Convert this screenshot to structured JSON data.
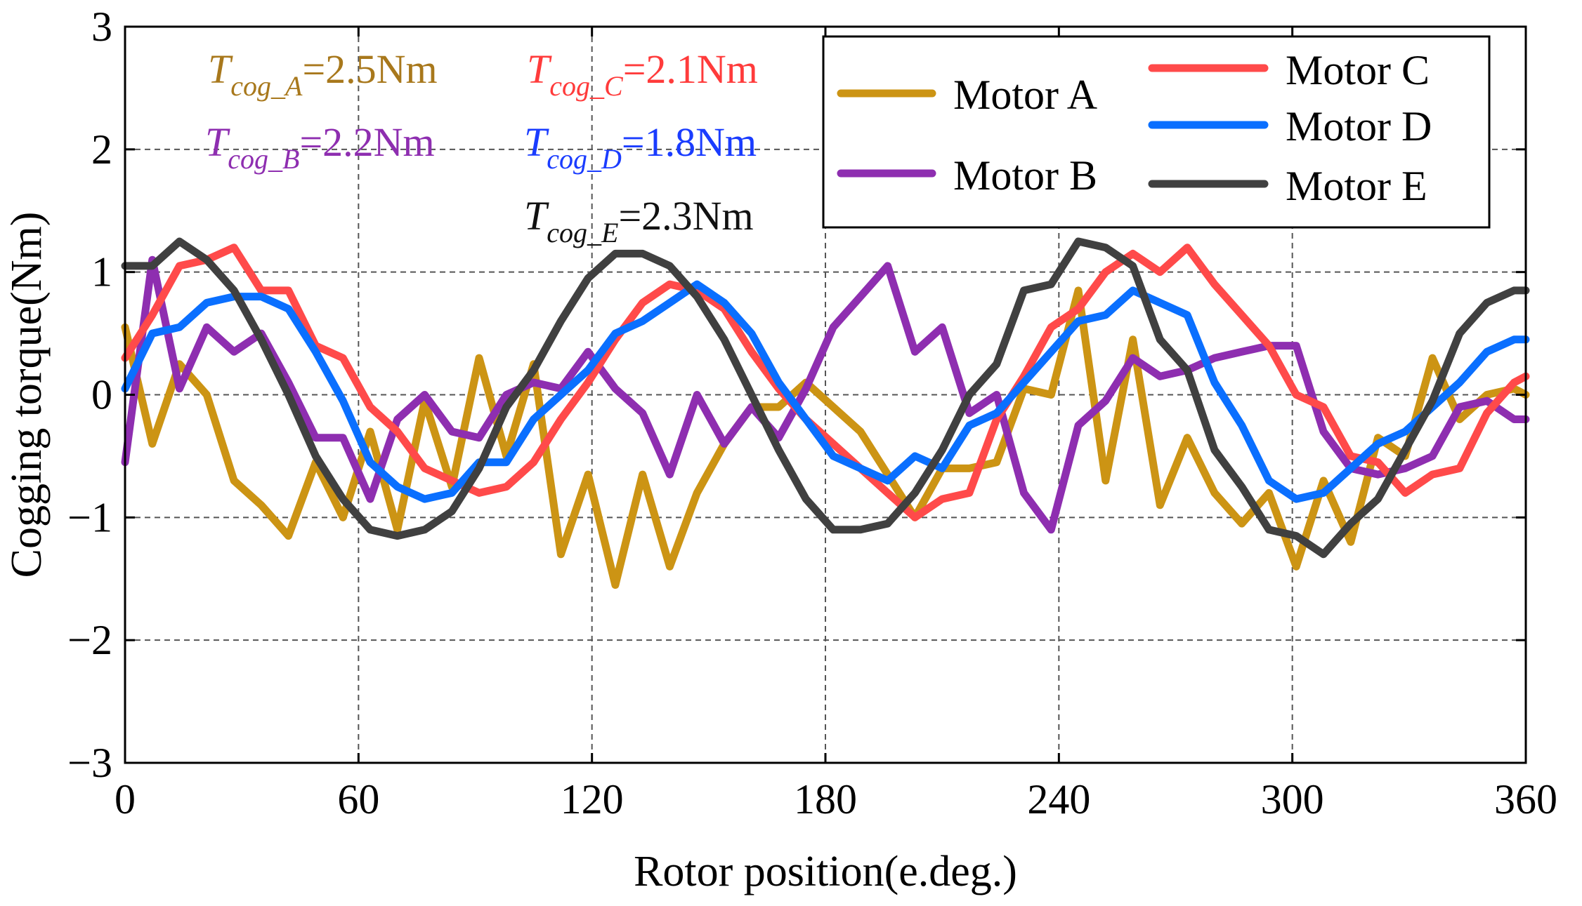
{
  "chart_data": {
    "type": "line",
    "xlabel": "Rotor position(e.deg.)",
    "ylabel": "Cogging torque(Nm)",
    "xlim": [
      0,
      360
    ],
    "ylim": [
      -3,
      3
    ],
    "xticks": [
      0,
      60,
      120,
      180,
      240,
      300,
      360
    ],
    "yticks": [
      -3,
      -2,
      -1,
      0,
      1,
      2,
      3
    ],
    "xtick_labels": [
      "0",
      "60",
      "120",
      "180",
      "240",
      "300",
      "360"
    ],
    "ytick_labels": [
      "−3",
      "−2",
      "−1",
      "0",
      "1",
      "2",
      "3"
    ],
    "grid": true,
    "legend_position": "top-right",
    "annotations": [
      {
        "main": "T",
        "sub": "cog_A",
        "value": "=2.5Nm",
        "color": "#A8781C"
      },
      {
        "main": "T",
        "sub": "cog_C",
        "value": "=2.1Nm",
        "color": "#FF3B3B"
      },
      {
        "main": "T",
        "sub": "cog_B",
        "value": "=2.2Nm",
        "color": "#8E2EB0"
      },
      {
        "main": "T",
        "sub": "cog_D",
        "value": "=1.8Nm",
        "color": "#1A3CFF"
      },
      {
        "main": "T",
        "sub": "cog_E",
        "value": "=2.3Nm",
        "color": "#111111"
      }
    ],
    "series": [
      {
        "name": "Motor A",
        "color": "#CC9414",
        "x": [
          0,
          7,
          14,
          21,
          28,
          35,
          42,
          49,
          56,
          63,
          70,
          77,
          84,
          91,
          98,
          105,
          112,
          119,
          126,
          133,
          140,
          147,
          154,
          161,
          168,
          175,
          182,
          189,
          196,
          203,
          210,
          217,
          224,
          231,
          238,
          245,
          252,
          259,
          266,
          273,
          280,
          287,
          294,
          301,
          308,
          315,
          322,
          329,
          336,
          343,
          350,
          357,
          360
        ],
        "y": [
          0.55,
          -0.4,
          0.25,
          0.0,
          -0.7,
          -0.9,
          -1.15,
          -0.55,
          -1.0,
          -0.3,
          -1.1,
          -0.05,
          -0.75,
          0.3,
          -0.5,
          0.25,
          -1.3,
          -0.65,
          -1.55,
          -0.65,
          -1.4,
          -0.8,
          -0.4,
          -0.1,
          -0.1,
          0.1,
          -0.1,
          -0.3,
          -0.65,
          -1.0,
          -0.6,
          -0.6,
          -0.55,
          0.05,
          0.0,
          0.85,
          -0.7,
          0.45,
          -0.9,
          -0.35,
          -0.8,
          -1.05,
          -0.8,
          -1.4,
          -0.7,
          -1.2,
          -0.35,
          -0.5,
          0.3,
          -0.2,
          0.0,
          0.05,
          0.0
        ]
      },
      {
        "name": "Motor B",
        "color": "#8E2EB0",
        "x": [
          0,
          7,
          14,
          21,
          28,
          35,
          42,
          49,
          56,
          63,
          70,
          77,
          84,
          91,
          98,
          105,
          112,
          119,
          126,
          133,
          140,
          147,
          154,
          161,
          168,
          175,
          182,
          189,
          196,
          203,
          210,
          217,
          224,
          231,
          238,
          245,
          252,
          259,
          266,
          273,
          280,
          287,
          294,
          301,
          308,
          315,
          322,
          329,
          336,
          343,
          350,
          357,
          360
        ],
        "y": [
          -0.55,
          1.1,
          0.05,
          0.55,
          0.35,
          0.5,
          0.1,
          -0.35,
          -0.35,
          -0.85,
          -0.2,
          0.0,
          -0.3,
          -0.35,
          0.0,
          0.1,
          0.05,
          0.35,
          0.05,
          -0.15,
          -0.65,
          0.0,
          -0.4,
          -0.1,
          -0.35,
          0.05,
          0.55,
          0.8,
          1.05,
          0.35,
          0.55,
          -0.15,
          0.0,
          -0.8,
          -1.1,
          -0.25,
          -0.05,
          0.3,
          0.15,
          0.2,
          0.3,
          0.35,
          0.4,
          0.4,
          -0.3,
          -0.6,
          -0.65,
          -0.6,
          -0.5,
          -0.1,
          -0.05,
          -0.2,
          -0.2
        ]
      },
      {
        "name": "Motor C",
        "color": "#FF4A4A",
        "x": [
          0,
          7,
          14,
          21,
          28,
          35,
          42,
          49,
          56,
          63,
          70,
          77,
          84,
          91,
          98,
          105,
          112,
          119,
          126,
          133,
          140,
          147,
          154,
          161,
          168,
          175,
          182,
          189,
          196,
          203,
          210,
          217,
          224,
          231,
          238,
          245,
          252,
          259,
          266,
          273,
          280,
          287,
          294,
          301,
          308,
          315,
          322,
          329,
          336,
          343,
          350,
          357,
          360
        ],
        "y": [
          0.3,
          0.65,
          1.05,
          1.1,
          1.2,
          0.85,
          0.85,
          0.4,
          0.3,
          -0.1,
          -0.3,
          -0.6,
          -0.7,
          -0.8,
          -0.75,
          -0.55,
          -0.2,
          0.1,
          0.45,
          0.75,
          0.9,
          0.85,
          0.7,
          0.35,
          0.05,
          -0.2,
          -0.4,
          -0.6,
          -0.8,
          -1.0,
          -0.85,
          -0.8,
          -0.2,
          0.15,
          0.55,
          0.7,
          1.0,
          1.15,
          1.0,
          1.2,
          0.9,
          0.65,
          0.4,
          0.0,
          -0.1,
          -0.5,
          -0.55,
          -0.8,
          -0.65,
          -0.6,
          -0.15,
          0.1,
          0.15
        ]
      },
      {
        "name": "Motor D",
        "color": "#0A6FFF",
        "x": [
          0,
          7,
          14,
          21,
          28,
          35,
          42,
          49,
          56,
          63,
          70,
          77,
          84,
          91,
          98,
          105,
          112,
          119,
          126,
          133,
          140,
          147,
          154,
          161,
          168,
          175,
          182,
          189,
          196,
          203,
          210,
          217,
          224,
          231,
          238,
          245,
          252,
          259,
          266,
          273,
          280,
          287,
          294,
          301,
          308,
          315,
          322,
          329,
          336,
          343,
          350,
          357,
          360
        ],
        "y": [
          0.05,
          0.5,
          0.55,
          0.75,
          0.8,
          0.8,
          0.7,
          0.35,
          -0.05,
          -0.55,
          -0.75,
          -0.85,
          -0.8,
          -0.55,
          -0.55,
          -0.2,
          0.0,
          0.2,
          0.5,
          0.6,
          0.75,
          0.9,
          0.75,
          0.5,
          0.1,
          -0.2,
          -0.5,
          -0.6,
          -0.7,
          -0.5,
          -0.6,
          -0.25,
          -0.15,
          0.1,
          0.35,
          0.6,
          0.65,
          0.85,
          0.75,
          0.65,
          0.1,
          -0.25,
          -0.7,
          -0.85,
          -0.8,
          -0.6,
          -0.4,
          -0.3,
          -0.1,
          0.1,
          0.35,
          0.45,
          0.45
        ]
      },
      {
        "name": "Motor E",
        "color": "#404040",
        "x": [
          0,
          7,
          14,
          21,
          28,
          35,
          42,
          49,
          56,
          63,
          70,
          77,
          84,
          91,
          98,
          105,
          112,
          119,
          126,
          133,
          140,
          147,
          154,
          161,
          168,
          175,
          182,
          189,
          196,
          203,
          210,
          217,
          224,
          231,
          238,
          245,
          252,
          259,
          266,
          273,
          280,
          287,
          294,
          301,
          308,
          315,
          322,
          329,
          336,
          343,
          350,
          357,
          360
        ],
        "y": [
          1.05,
          1.05,
          1.25,
          1.1,
          0.85,
          0.45,
          0.0,
          -0.5,
          -0.85,
          -1.1,
          -1.15,
          -1.1,
          -0.95,
          -0.6,
          -0.1,
          0.2,
          0.6,
          0.95,
          1.15,
          1.15,
          1.05,
          0.8,
          0.45,
          0.0,
          -0.45,
          -0.85,
          -1.1,
          -1.1,
          -1.05,
          -0.8,
          -0.45,
          0.0,
          0.25,
          0.85,
          0.9,
          1.25,
          1.2,
          1.05,
          0.45,
          0.2,
          -0.45,
          -0.75,
          -1.1,
          -1.15,
          -1.3,
          -1.05,
          -0.85,
          -0.45,
          -0.05,
          0.5,
          0.75,
          0.85,
          0.85
        ]
      }
    ]
  }
}
